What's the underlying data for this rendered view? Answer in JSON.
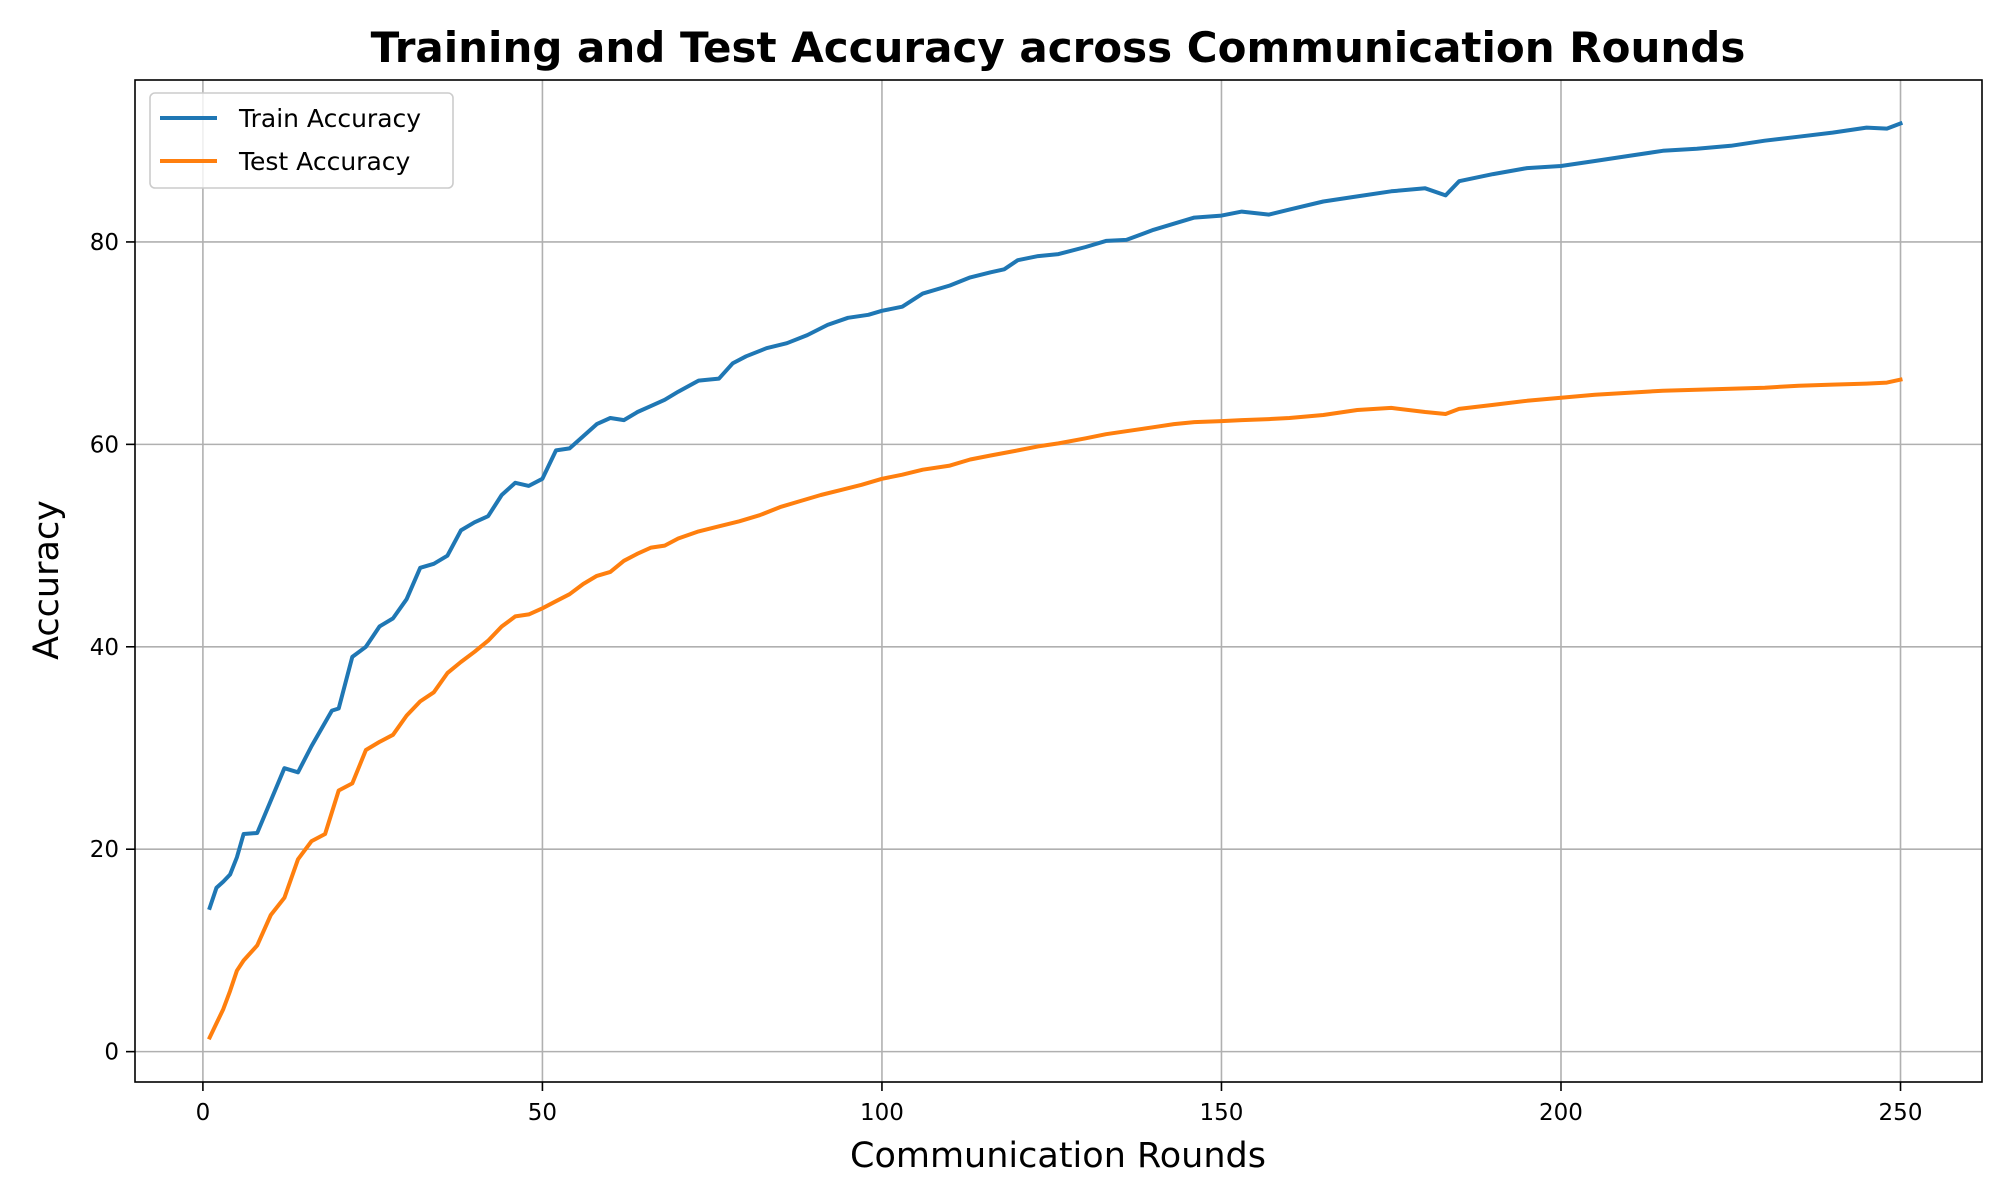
{
  "chart_data": {
    "type": "line",
    "title": "Training and Test Accuracy across Communication Rounds",
    "xlabel": "Communication Rounds",
    "ylabel": "Accuracy",
    "xlim": [
      -10,
      262
    ],
    "ylim": [
      -3,
      96
    ],
    "xticks": [
      0,
      50,
      100,
      150,
      200,
      250
    ],
    "yticks": [
      0,
      20,
      40,
      60,
      80
    ],
    "grid": true,
    "legend_position": "top-left",
    "series": [
      {
        "name": "Train Accuracy",
        "color": "#1f77b4",
        "x": [
          1,
          2,
          3,
          4,
          5,
          6,
          8,
          10,
          12,
          14,
          16,
          19,
          20,
          22,
          24,
          26,
          28,
          30,
          32,
          34,
          36,
          38,
          40,
          42,
          44,
          46,
          48,
          50,
          52,
          54,
          56,
          58,
          60,
          62,
          64,
          66,
          68,
          70,
          73,
          76,
          78,
          80,
          83,
          86,
          89,
          92,
          95,
          98,
          100,
          103,
          106,
          110,
          113,
          116,
          118,
          120,
          123,
          126,
          130,
          133,
          136,
          140,
          143,
          146,
          150,
          153,
          157,
          160,
          165,
          170,
          175,
          180,
          183,
          185,
          190,
          195,
          200,
          205,
          210,
          215,
          220,
          225,
          230,
          235,
          240,
          245,
          248,
          250
        ],
        "y": [
          14.2,
          16.2,
          16.8,
          17.5,
          19.2,
          21.5,
          21.6,
          24.8,
          28.0,
          27.6,
          30.2,
          33.7,
          33.9,
          39.0,
          40.0,
          42.0,
          42.8,
          44.7,
          47.8,
          48.2,
          49.0,
          51.5,
          52.3,
          52.9,
          55.0,
          56.2,
          55.9,
          56.6,
          59.4,
          59.6,
          60.8,
          62.0,
          62.6,
          62.4,
          63.2,
          63.8,
          64.4,
          65.2,
          66.3,
          66.5,
          68.0,
          68.7,
          69.5,
          70.0,
          70.8,
          71.8,
          72.5,
          72.8,
          73.2,
          73.6,
          74.9,
          75.7,
          76.5,
          77.0,
          77.3,
          78.2,
          78.6,
          78.8,
          79.5,
          80.1,
          80.2,
          81.2,
          81.8,
          82.4,
          82.6,
          83.0,
          82.7,
          83.2,
          84.0,
          84.5,
          85.0,
          85.3,
          84.6,
          86.0,
          86.7,
          87.3,
          87.5,
          88.0,
          88.5,
          89.0,
          89.2,
          89.5,
          90.0,
          90.4,
          90.8,
          91.3,
          91.2,
          91.7
        ]
      },
      {
        "name": "Test Accuracy",
        "color": "#ff7f0e",
        "x": [
          1,
          2,
          3,
          4,
          5,
          6,
          8,
          10,
          12,
          14,
          16,
          18,
          20,
          22,
          24,
          26,
          28,
          30,
          32,
          34,
          36,
          38,
          40,
          42,
          44,
          46,
          48,
          50,
          52,
          54,
          56,
          58,
          60,
          62,
          64,
          66,
          68,
          70,
          73,
          76,
          79,
          82,
          85,
          88,
          91,
          94,
          97,
          100,
          103,
          106,
          110,
          113,
          116,
          120,
          123,
          126,
          130,
          133,
          136,
          140,
          143,
          146,
          150,
          153,
          157,
          160,
          165,
          170,
          175,
          180,
          183,
          185,
          190,
          195,
          200,
          205,
          210,
          215,
          220,
          225,
          230,
          235,
          240,
          245,
          248,
          250
        ],
        "y": [
          1.4,
          2.8,
          4.2,
          6.0,
          8.0,
          9.0,
          10.5,
          13.5,
          15.2,
          19.0,
          20.8,
          21.5,
          25.8,
          26.5,
          29.8,
          30.6,
          31.3,
          33.2,
          34.6,
          35.5,
          37.4,
          38.5,
          39.5,
          40.6,
          42.0,
          43.0,
          43.2,
          43.8,
          44.5,
          45.2,
          46.2,
          47.0,
          47.4,
          48.5,
          49.2,
          49.8,
          50.0,
          50.7,
          51.4,
          51.9,
          52.4,
          53.0,
          53.8,
          54.4,
          55.0,
          55.5,
          56.0,
          56.6,
          57.0,
          57.5,
          57.9,
          58.5,
          58.9,
          59.4,
          59.8,
          60.1,
          60.6,
          61.0,
          61.3,
          61.7,
          62.0,
          62.2,
          62.3,
          62.4,
          62.5,
          62.6,
          62.9,
          63.4,
          63.6,
          63.2,
          63.0,
          63.5,
          63.9,
          64.3,
          64.6,
          64.9,
          65.1,
          65.3,
          65.4,
          65.5,
          65.6,
          65.8,
          65.9,
          66.0,
          66.1,
          66.4
        ]
      }
    ]
  }
}
